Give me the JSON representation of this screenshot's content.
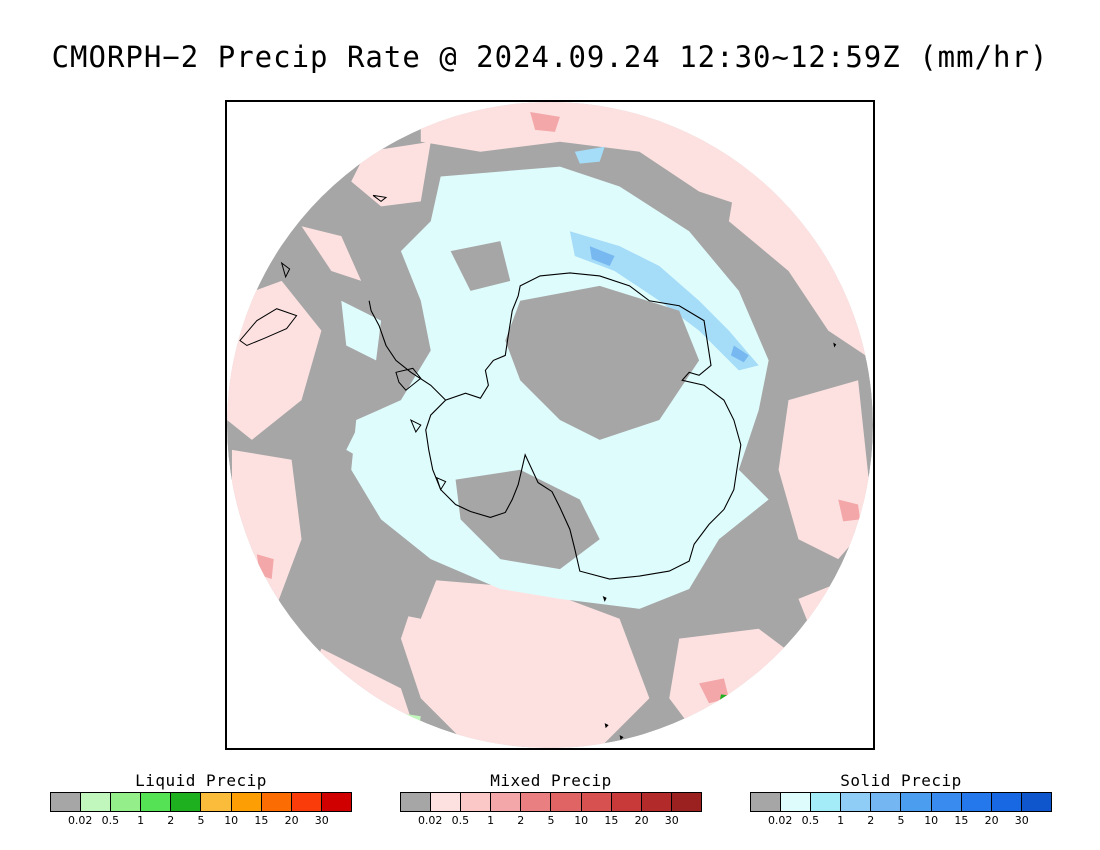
{
  "title": "CMORPH−2 Precip Rate @ 2024.09.24 12:30~12:59Z (mm/hr)",
  "map": {
    "projection": "south-polar-stereographic",
    "background_color": "#a6a6a6",
    "coastline_color": "#000000",
    "regions": [
      {
        "type": "solid",
        "color": "#dffcfd"
      },
      {
        "type": "solid_moderate",
        "color": "#a5dcf8"
      },
      {
        "type": "solid_heavy",
        "color": "#78b8f0"
      },
      {
        "type": "mixed",
        "color": "#fde1e1"
      },
      {
        "type": "mixed_moderate",
        "color": "#f3a7a9"
      },
      {
        "type": "liquid",
        "color": "#c1f7bd"
      }
    ]
  },
  "legends": [
    {
      "title": "Liquid Precip",
      "colors": [
        "#a6a6a6",
        "#c1f7bd",
        "#94ee89",
        "#55e255",
        "#1fb01f",
        "#fbbb3b",
        "#fc9e04",
        "#fb6d02",
        "#f93c09",
        "#d00000"
      ],
      "ticks": [
        "0.02",
        "0.5",
        "1",
        "2",
        "5",
        "10",
        "15",
        "20",
        "30"
      ]
    },
    {
      "title": "Mixed Precip",
      "colors": [
        "#a6a6a6",
        "#fde1e1",
        "#fbc7c7",
        "#f3a7a9",
        "#e97f80",
        "#e16465",
        "#d75151",
        "#c83a3a",
        "#b32a2b",
        "#9b2121"
      ],
      "ticks": [
        "0.02",
        "0.5",
        "1",
        "2",
        "5",
        "10",
        "15",
        "20",
        "30"
      ]
    },
    {
      "title": "Solid Precip",
      "colors": [
        "#a6a6a6",
        "#dffcfd",
        "#a5ecf9",
        "#90cdf6",
        "#73b6f2",
        "#4b9df0",
        "#3a8bef",
        "#2478eb",
        "#1868e4",
        "#0f55cc"
      ],
      "ticks": [
        "0.02",
        "0.5",
        "1",
        "2",
        "5",
        "10",
        "15",
        "20",
        "30"
      ]
    }
  ]
}
